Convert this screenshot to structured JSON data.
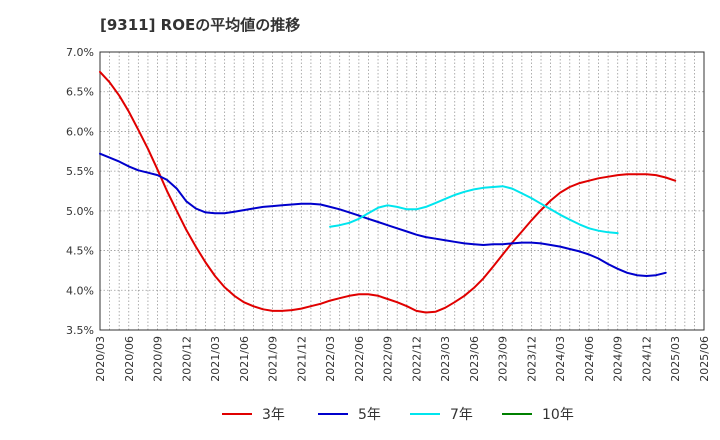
{
  "chart_data": {
    "type": "line",
    "title": "[9311]  ROEの平均値の推移",
    "xlabel": "",
    "ylabel": "",
    "ylim": [
      3.5,
      7.0
    ],
    "yticks": [
      "3.5%",
      "4.0%",
      "4.5%",
      "5.0%",
      "5.5%",
      "6.0%",
      "6.5%",
      "7.0%"
    ],
    "ytick_values": [
      3.5,
      4.0,
      4.5,
      5.0,
      5.5,
      6.0,
      6.5,
      7.0
    ],
    "categories": [
      "2020/03",
      "2020/06",
      "2020/09",
      "2020/12",
      "2021/03",
      "2021/06",
      "2021/09",
      "2021/12",
      "2022/03",
      "2022/06",
      "2022/09",
      "2022/12",
      "2023/03",
      "2023/06",
      "2023/09",
      "2023/12",
      "2024/03",
      "2024/06",
      "2024/09",
      "2024/12",
      "2025/03",
      "2025/06"
    ],
    "grid": true,
    "legend_position": "bottom",
    "series": [
      {
        "name": "3年",
        "color": "#e00000",
        "start_index": 0,
        "points": [
          [
            0,
            6.75
          ],
          [
            0.33,
            6.62
          ],
          [
            0.67,
            6.45
          ],
          [
            1,
            6.25
          ],
          [
            1.33,
            6.02
          ],
          [
            1.67,
            5.78
          ],
          [
            2,
            5.52
          ],
          [
            2.33,
            5.25
          ],
          [
            2.67,
            5.0
          ],
          [
            3,
            4.76
          ],
          [
            3.33,
            4.55
          ],
          [
            3.67,
            4.35
          ],
          [
            4,
            4.18
          ],
          [
            4.33,
            4.04
          ],
          [
            4.67,
            3.93
          ],
          [
            5,
            3.85
          ],
          [
            5.33,
            3.8
          ],
          [
            5.67,
            3.76
          ],
          [
            6,
            3.74
          ],
          [
            6.33,
            3.74
          ],
          [
            6.67,
            3.75
          ],
          [
            7,
            3.77
          ],
          [
            7.33,
            3.8
          ],
          [
            7.67,
            3.83
          ],
          [
            8,
            3.87
          ],
          [
            8.33,
            3.9
          ],
          [
            8.67,
            3.93
          ],
          [
            9,
            3.95
          ],
          [
            9.33,
            3.95
          ],
          [
            9.67,
            3.93
          ],
          [
            10,
            3.89
          ],
          [
            10.33,
            3.85
          ],
          [
            10.67,
            3.8
          ],
          [
            11,
            3.74
          ],
          [
            11.33,
            3.72
          ],
          [
            11.67,
            3.73
          ],
          [
            12,
            3.78
          ],
          [
            12.33,
            3.85
          ],
          [
            12.67,
            3.93
          ],
          [
            13,
            4.03
          ],
          [
            13.33,
            4.15
          ],
          [
            13.67,
            4.3
          ],
          [
            14,
            4.45
          ],
          [
            14.33,
            4.6
          ],
          [
            14.67,
            4.74
          ],
          [
            15,
            4.88
          ],
          [
            15.33,
            5.01
          ],
          [
            15.67,
            5.13
          ],
          [
            16,
            5.23
          ],
          [
            16.33,
            5.3
          ],
          [
            16.67,
            5.35
          ],
          [
            17,
            5.38
          ],
          [
            17.33,
            5.41
          ],
          [
            17.67,
            5.43
          ],
          [
            18,
            5.45
          ],
          [
            18.33,
            5.46
          ],
          [
            18.67,
            5.46
          ],
          [
            19,
            5.46
          ],
          [
            19.33,
            5.45
          ],
          [
            19.67,
            5.42
          ],
          [
            20,
            5.38
          ]
        ]
      },
      {
        "name": "5年",
        "color": "#0000cc",
        "start_index": 0,
        "points": [
          [
            0,
            5.72
          ],
          [
            0.33,
            5.67
          ],
          [
            0.67,
            5.62
          ],
          [
            1,
            5.56
          ],
          [
            1.33,
            5.51
          ],
          [
            1.67,
            5.48
          ],
          [
            2,
            5.45
          ],
          [
            2.33,
            5.39
          ],
          [
            2.67,
            5.28
          ],
          [
            3,
            5.12
          ],
          [
            3.33,
            5.03
          ],
          [
            3.67,
            4.98
          ],
          [
            4,
            4.97
          ],
          [
            4.33,
            4.97
          ],
          [
            4.67,
            4.99
          ],
          [
            5,
            5.01
          ],
          [
            5.33,
            5.03
          ],
          [
            5.67,
            5.05
          ],
          [
            6,
            5.06
          ],
          [
            6.33,
            5.07
          ],
          [
            6.67,
            5.08
          ],
          [
            7,
            5.09
          ],
          [
            7.33,
            5.09
          ],
          [
            7.67,
            5.08
          ],
          [
            8,
            5.05
          ],
          [
            8.33,
            5.02
          ],
          [
            8.67,
            4.98
          ],
          [
            9,
            4.94
          ],
          [
            9.33,
            4.9
          ],
          [
            9.67,
            4.86
          ],
          [
            10,
            4.82
          ],
          [
            10.33,
            4.78
          ],
          [
            10.67,
            4.74
          ],
          [
            11,
            4.7
          ],
          [
            11.33,
            4.67
          ],
          [
            11.67,
            4.65
          ],
          [
            12,
            4.63
          ],
          [
            12.33,
            4.61
          ],
          [
            12.67,
            4.59
          ],
          [
            13,
            4.58
          ],
          [
            13.33,
            4.57
          ],
          [
            13.67,
            4.58
          ],
          [
            14,
            4.58
          ],
          [
            14.33,
            4.59
          ],
          [
            14.67,
            4.6
          ],
          [
            15,
            4.6
          ],
          [
            15.33,
            4.59
          ],
          [
            15.67,
            4.57
          ],
          [
            16,
            4.55
          ],
          [
            16.33,
            4.52
          ],
          [
            16.67,
            4.49
          ],
          [
            17,
            4.45
          ],
          [
            17.33,
            4.4
          ],
          [
            17.67,
            4.33
          ],
          [
            18,
            4.27
          ],
          [
            18.33,
            4.22
          ],
          [
            18.67,
            4.19
          ],
          [
            19,
            4.18
          ],
          [
            19.33,
            4.19
          ],
          [
            19.67,
            4.22
          ]
        ]
      },
      {
        "name": "7年",
        "color": "#00e5ee",
        "start_index": 8,
        "points": [
          [
            8,
            4.8
          ],
          [
            8.33,
            4.82
          ],
          [
            8.67,
            4.85
          ],
          [
            9,
            4.9
          ],
          [
            9.33,
            4.97
          ],
          [
            9.67,
            5.04
          ],
          [
            10,
            5.07
          ],
          [
            10.33,
            5.05
          ],
          [
            10.67,
            5.02
          ],
          [
            11,
            5.02
          ],
          [
            11.33,
            5.05
          ],
          [
            11.67,
            5.1
          ],
          [
            12,
            5.15
          ],
          [
            12.33,
            5.2
          ],
          [
            12.67,
            5.24
          ],
          [
            13,
            5.27
          ],
          [
            13.33,
            5.29
          ],
          [
            13.67,
            5.3
          ],
          [
            14,
            5.31
          ],
          [
            14.33,
            5.28
          ],
          [
            14.67,
            5.22
          ],
          [
            15,
            5.16
          ],
          [
            15.33,
            5.09
          ],
          [
            15.67,
            5.02
          ],
          [
            16,
            4.95
          ],
          [
            16.33,
            4.89
          ],
          [
            16.67,
            4.83
          ],
          [
            17,
            4.78
          ],
          [
            17.33,
            4.75
          ],
          [
            17.67,
            4.73
          ],
          [
            18,
            4.72
          ]
        ]
      },
      {
        "name": "10年",
        "color": "#008000",
        "start_index": null,
        "points": []
      }
    ]
  }
}
